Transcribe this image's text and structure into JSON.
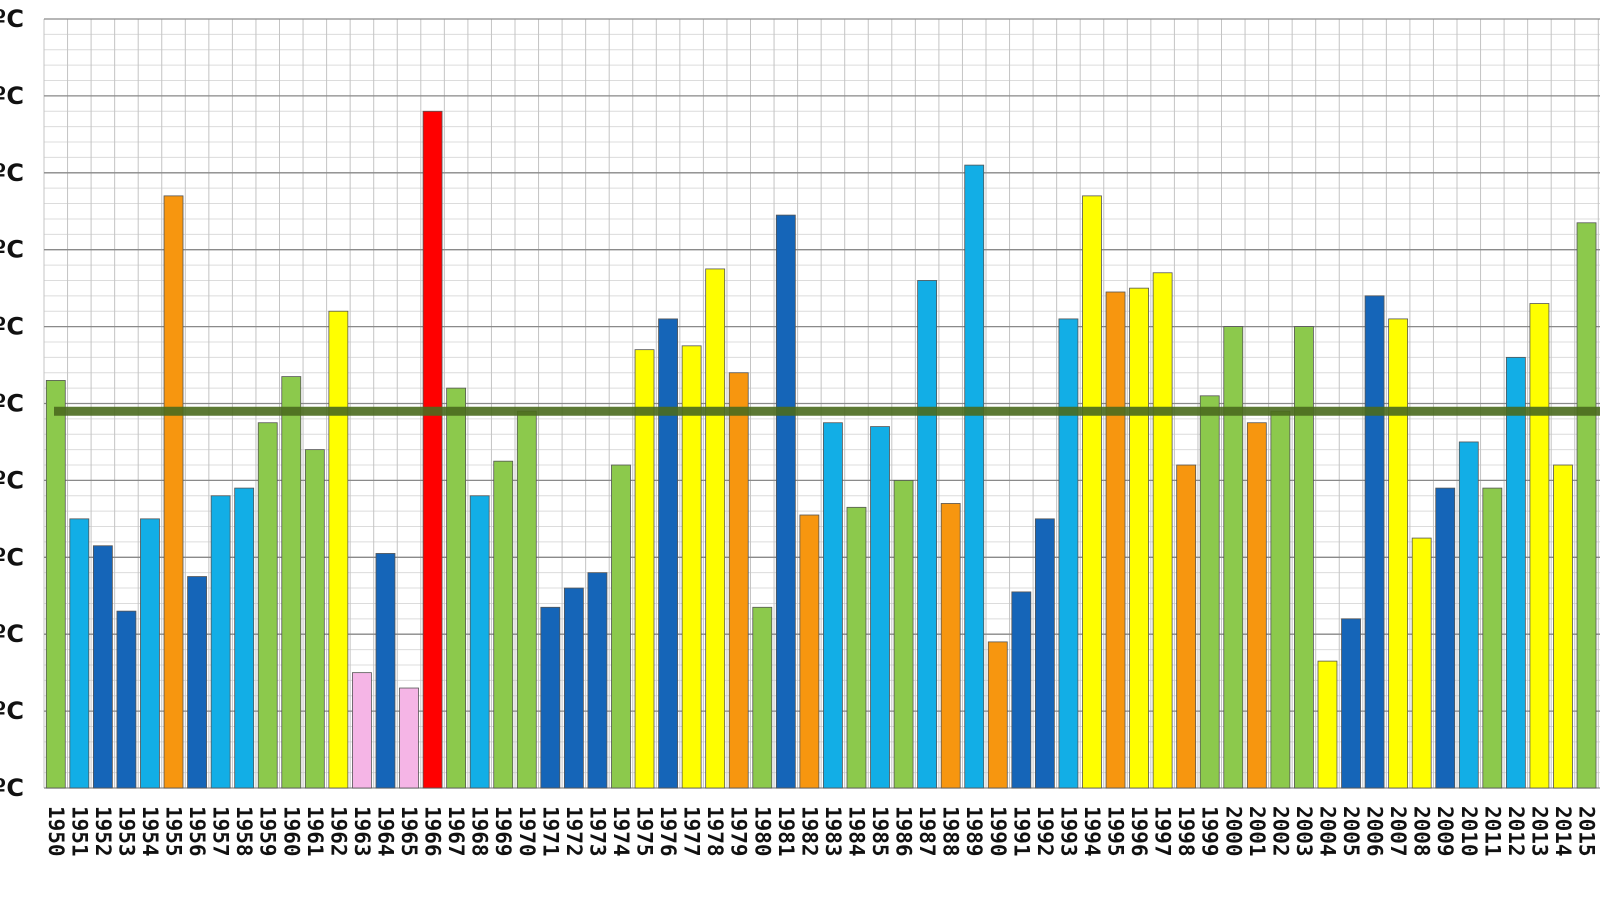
{
  "chart_data": {
    "type": "bar",
    "title": "",
    "xlabel": "",
    "ylabel": "",
    "ylim": [
      0,
      10
    ],
    "grid": true,
    "legend": "none",
    "y_tick_suffix": "ºC",
    "reference_line_value": 4.9,
    "reference_line_color": "#4a6a1e",
    "colors": {
      "pink": "#f5b5e6",
      "dark_blue": "#1565b8",
      "light_blue": "#12aee6",
      "green": "#8cc94c",
      "yellow": "#ffff00",
      "orange": "#f7960f",
      "red": "#ff0000"
    },
    "categories": [
      "1950",
      "1951",
      "1952",
      "1953",
      "1954",
      "1955",
      "1956",
      "1957",
      "1958",
      "1959",
      "1960",
      "1961",
      "1962",
      "1963",
      "1964",
      "1965",
      "1966",
      "1967",
      "1968",
      "1969",
      "1970",
      "1971",
      "1972",
      "1973",
      "1974",
      "1975",
      "1976",
      "1977",
      "1978",
      "1979",
      "1980",
      "1981",
      "1982",
      "1983",
      "1984",
      "1985",
      "1986",
      "1987",
      "1988",
      "1989",
      "1990",
      "1991",
      "1992",
      "1993",
      "1994",
      "1995",
      "1996",
      "1997",
      "1998",
      "1999",
      "2000",
      "2001",
      "2002",
      "2003",
      "2004",
      "2005",
      "2006",
      "2007",
      "2008",
      "2009",
      "2010",
      "2011",
      "2012",
      "2013",
      "2014",
      "2015"
    ],
    "values": [
      5.3,
      3.5,
      3.15,
      2.3,
      3.5,
      7.7,
      2.75,
      3.8,
      3.9,
      4.75,
      5.35,
      4.4,
      6.2,
      1.5,
      3.05,
      1.3,
      8.8,
      5.2,
      3.8,
      4.25,
      4.9,
      2.35,
      2.6,
      2.8,
      4.2,
      5.7,
      6.1,
      5.75,
      6.75,
      5.4,
      2.35,
      7.45,
      3.55,
      4.75,
      3.65,
      4.7,
      4.0,
      6.6,
      3.7,
      8.1,
      1.9,
      2.55,
      3.5,
      6.1,
      7.7,
      6.45,
      6.5,
      6.7,
      4.2,
      5.1,
      6.0,
      4.75,
      4.9,
      6.0,
      1.65,
      2.2,
      6.4,
      6.1,
      3.25,
      3.9,
      4.5,
      3.9,
      5.6,
      6.3,
      4.2,
      7.35
    ],
    "bar_colors": [
      "green",
      "light_blue",
      "dark_blue",
      "dark_blue",
      "light_blue",
      "orange",
      "dark_blue",
      "light_blue",
      "light_blue",
      "green",
      "green",
      "green",
      "yellow",
      "pink",
      "dark_blue",
      "pink",
      "red",
      "green",
      "light_blue",
      "green",
      "green",
      "dark_blue",
      "dark_blue",
      "dark_blue",
      "green",
      "yellow",
      "dark_blue",
      "yellow",
      "yellow",
      "orange",
      "green",
      "dark_blue",
      "orange",
      "light_blue",
      "green",
      "light_blue",
      "green",
      "light_blue",
      "orange",
      "light_blue",
      "orange",
      "dark_blue",
      "dark_blue",
      "light_blue",
      "yellow",
      "orange",
      "yellow",
      "yellow",
      "orange",
      "green",
      "green",
      "orange",
      "green",
      "green",
      "yellow",
      "dark_blue",
      "dark_blue",
      "yellow",
      "yellow",
      "dark_blue",
      "light_blue",
      "green",
      "light_blue",
      "yellow",
      "yellow",
      "green"
    ]
  }
}
